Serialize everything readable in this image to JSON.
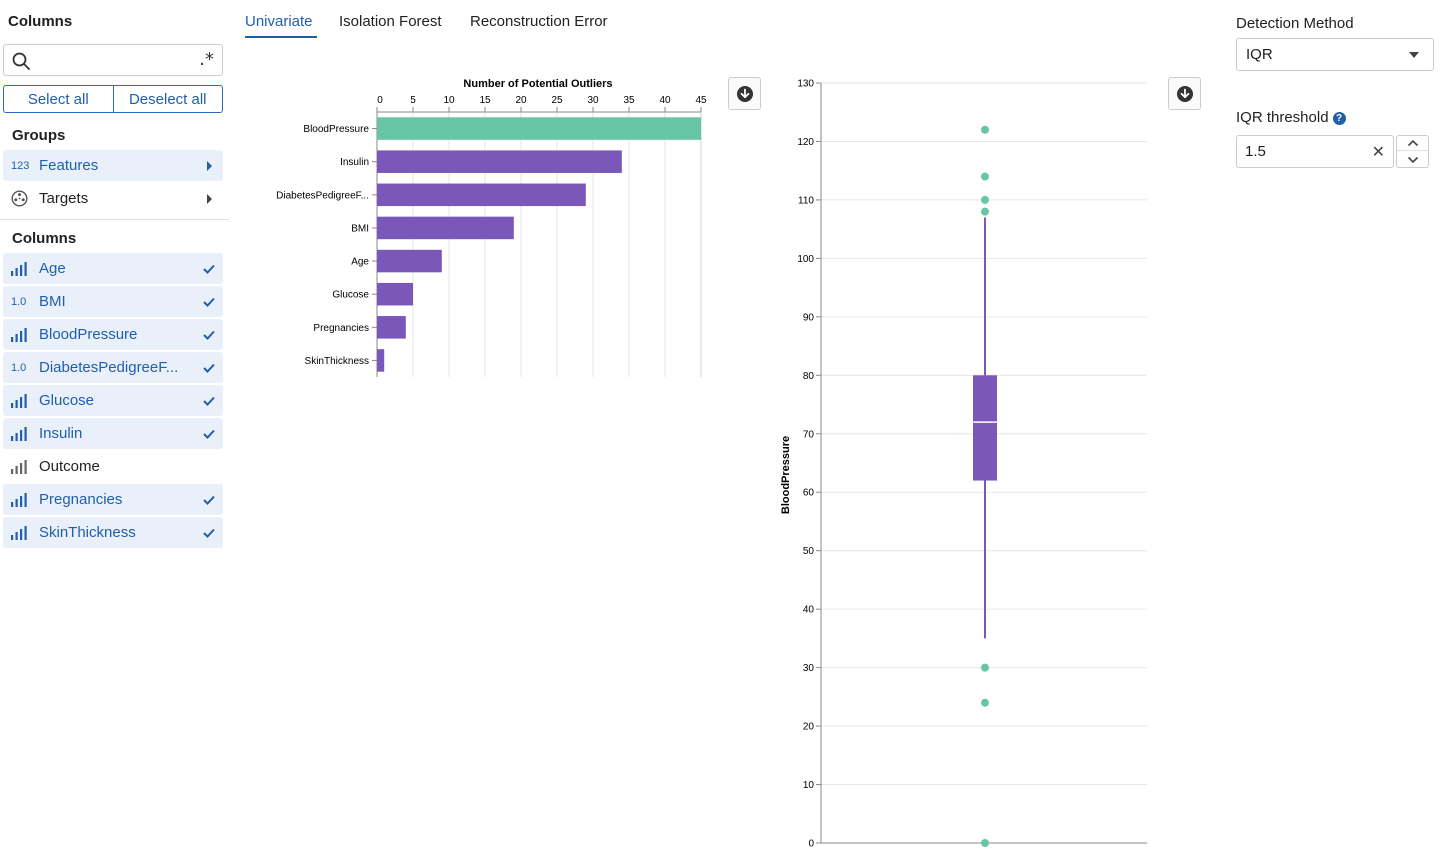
{
  "sidebar": {
    "title": "Columns",
    "search": {
      "value": "",
      "placeholder": "",
      "regex_icon": ".*"
    },
    "select_all_label": "Select all",
    "deselect_all_label": "Deselect all",
    "groups_heading": "Groups",
    "groups": [
      {
        "label": "Features",
        "icon_text": "123",
        "icon": "numeric-type-icon",
        "selected": true
      },
      {
        "label": "Targets",
        "icon_text": "",
        "icon": "target-icon",
        "selected": false
      }
    ],
    "columns_heading": "Columns",
    "columns": [
      {
        "label": "Age",
        "type": "bars",
        "type_text": "",
        "selected": true
      },
      {
        "label": "BMI",
        "type": "float",
        "type_text": "1.0",
        "selected": true
      },
      {
        "label": "BloodPressure",
        "type": "bars",
        "type_text": "",
        "selected": true
      },
      {
        "label": "DiabetesPedigreeF...",
        "type": "float",
        "type_text": "1.0",
        "selected": true
      },
      {
        "label": "Glucose",
        "type": "bars",
        "type_text": "",
        "selected": true
      },
      {
        "label": "Insulin",
        "type": "bars",
        "type_text": "",
        "selected": true
      },
      {
        "label": "Outcome",
        "type": "bars",
        "type_text": "",
        "selected": false
      },
      {
        "label": "Pregnancies",
        "type": "bars",
        "type_text": "",
        "selected": true
      },
      {
        "label": "SkinThickness",
        "type": "bars",
        "type_text": "",
        "selected": true
      }
    ]
  },
  "tabs": [
    {
      "label": "Univariate",
      "active": true
    },
    {
      "label": "Isolation Forest",
      "active": false
    },
    {
      "label": "Reconstruction Error",
      "active": false
    }
  ],
  "right_panel": {
    "detection_method_label": "Detection Method",
    "detection_method_value": "IQR",
    "iqr_threshold_label": "IQR threshold",
    "iqr_threshold_value": "1.5"
  },
  "colors": {
    "accent": "#1f5fae",
    "bar": "#7a57b8",
    "highlight": "#66c5a5",
    "outlier": "#66c5a5"
  },
  "chart_data": [
    {
      "type": "bar",
      "orientation": "horizontal",
      "title": "Number of Potential Outliers",
      "categories": [
        "BloodPressure",
        "Insulin",
        "DiabetesPedigreeF...",
        "BMI",
        "Age",
        "Glucose",
        "Pregnancies",
        "SkinThickness"
      ],
      "values": [
        45,
        34,
        29,
        19,
        9,
        5,
        4,
        1
      ],
      "highlighted": "BloodPressure",
      "xlim": [
        0,
        45
      ],
      "xticks": [
        0,
        5,
        10,
        15,
        20,
        25,
        30,
        35,
        40,
        45
      ],
      "grid": true
    },
    {
      "type": "box",
      "ylabel": "BloodPressure",
      "ylim": [
        0,
        130
      ],
      "yticks": [
        0,
        10,
        20,
        30,
        40,
        50,
        60,
        70,
        80,
        90,
        100,
        110,
        120,
        130
      ],
      "q1": 62,
      "median": 72,
      "q3": 80,
      "whisker_low": 35,
      "whisker_high": 107,
      "outliers": [
        122,
        114,
        110,
        108,
        30,
        24,
        0
      ],
      "grid": true
    }
  ]
}
